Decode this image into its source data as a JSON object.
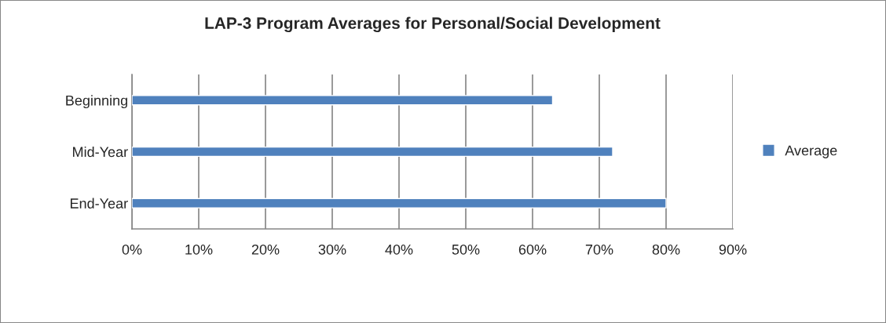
{
  "chart_data": {
    "type": "bar",
    "orientation": "horizontal",
    "title": "LAP-3 Program Averages for Personal/Social Development",
    "categories": [
      "Beginning",
      "Mid-Year",
      "End-Year"
    ],
    "series": [
      {
        "name": "Average",
        "color": "#4f81bd",
        "values": [
          63,
          72,
          80
        ]
      }
    ],
    "xlim": [
      0,
      90
    ],
    "xticks": [
      {
        "value": 0,
        "label": "0%"
      },
      {
        "value": 10,
        "label": "10%"
      },
      {
        "value": 20,
        "label": "20%"
      },
      {
        "value": 30,
        "label": "30%"
      },
      {
        "value": 40,
        "label": "40%"
      },
      {
        "value": 50,
        "label": "50%"
      },
      {
        "value": 60,
        "label": "60%"
      },
      {
        "value": 70,
        "label": "70%"
      },
      {
        "value": 80,
        "label": "80%"
      },
      {
        "value": 90,
        "label": "90%"
      }
    ],
    "grid": "x",
    "legend": "right"
  }
}
